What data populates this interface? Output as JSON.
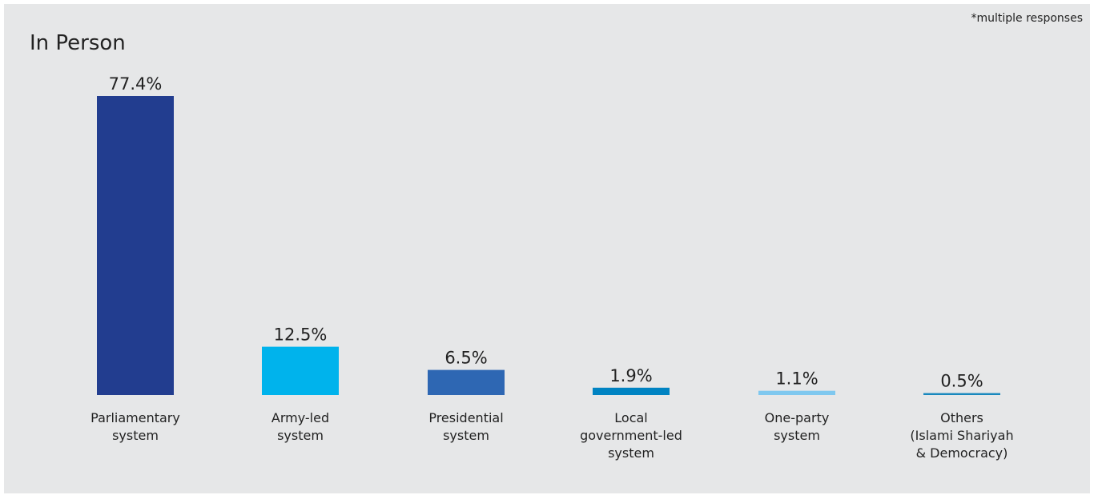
{
  "chart_data": {
    "type": "bar",
    "title": "In Person",
    "note": "*multiple responses",
    "categories": [
      [
        "Parliamentary",
        "system"
      ],
      [
        "Army-led",
        "system"
      ],
      [
        "Presidential",
        "system"
      ],
      [
        "Local",
        "government-led",
        "system"
      ],
      [
        "One-party",
        "system"
      ],
      [
        "Others",
        "(Islami Shariyah",
        "& Democracy)"
      ]
    ],
    "values": [
      77.4,
      12.5,
      6.5,
      1.9,
      1.1,
      0.5
    ],
    "value_labels": [
      "77.4%",
      "12.5%",
      "6.5%",
      "1.9%",
      "1.1%",
      "0.5%"
    ],
    "colors": [
      "#223d8f",
      "#00b3ec",
      "#2e67b3",
      "#0083c2",
      "#7fc8ef",
      "#1888bd"
    ],
    "ylim": [
      0,
      77.4
    ],
    "grid": false,
    "legend": "none"
  }
}
